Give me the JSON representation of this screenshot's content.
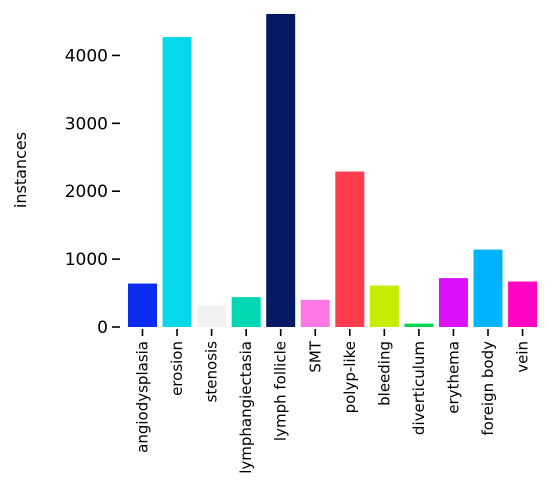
{
  "chart_data": {
    "type": "bar",
    "title": "",
    "xlabel": "",
    "ylabel": "instances",
    "categories": [
      "angiodysplasia",
      "erosion",
      "stenosis",
      "lymphangiectasia",
      "lymph follicle",
      "SMT",
      "polyp-like",
      "bleeding",
      "diverticulum",
      "erythema",
      "foreign body",
      "vein"
    ],
    "values": [
      640,
      4270,
      320,
      440,
      4610,
      400,
      2290,
      610,
      50,
      720,
      1140,
      670
    ],
    "colors": [
      "#0a2cf0",
      "#05d8e8",
      "#f2f2f2",
      "#00d8b4",
      "#051a63",
      "#ff78e3",
      "#ff3d4e",
      "#c6ec00",
      "#00d94f",
      "#db10fa",
      "#00b3ff",
      "#ff05c3"
    ],
    "yticks": [
      0,
      1000,
      2000,
      3000,
      4000
    ],
    "ylim": [
      0,
      4610
    ],
    "grid": false,
    "legend": "none"
  }
}
